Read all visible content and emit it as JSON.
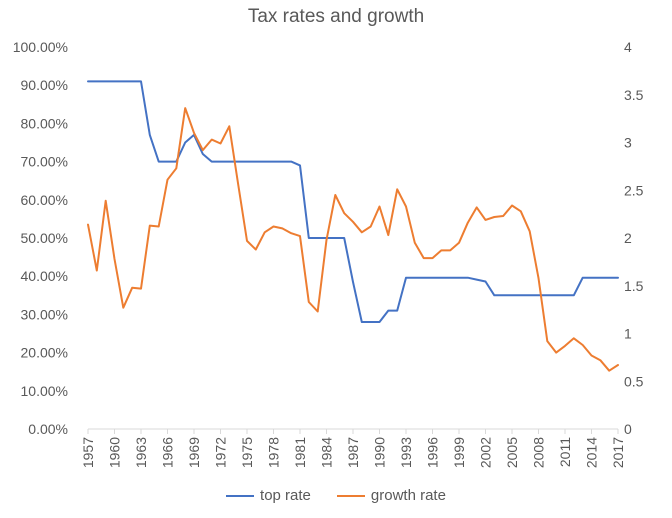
{
  "chart_data": {
    "type": "line",
    "title": "Tax rates and growth",
    "xlabel": "",
    "ylabel_left": "",
    "ylabel_right": "",
    "x": [
      1957,
      1958,
      1959,
      1960,
      1961,
      1962,
      1963,
      1964,
      1965,
      1966,
      1967,
      1968,
      1969,
      1970,
      1971,
      1972,
      1973,
      1974,
      1975,
      1976,
      1977,
      1978,
      1979,
      1980,
      1981,
      1982,
      1983,
      1984,
      1985,
      1986,
      1987,
      1988,
      1989,
      1990,
      1991,
      1992,
      1993,
      1994,
      1995,
      1996,
      1997,
      1998,
      1999,
      2000,
      2001,
      2002,
      2003,
      2004,
      2005,
      2006,
      2007,
      2008,
      2009,
      2010,
      2011,
      2012,
      2013,
      2014,
      2015,
      2016,
      2017
    ],
    "x_tick_labels": [
      "1957",
      "1960",
      "1963",
      "1966",
      "1969",
      "1972",
      "1975",
      "1978",
      "1981",
      "1984",
      "1987",
      "1990",
      "1993",
      "1996",
      "1999",
      "2002",
      "2005",
      "2008",
      "2011",
      "2014",
      "2017"
    ],
    "y_left_ticks": [
      "0.00%",
      "10.00%",
      "20.00%",
      "30.00%",
      "40.00%",
      "50.00%",
      "60.00%",
      "70.00%",
      "80.00%",
      "90.00%",
      "100.00%"
    ],
    "y_right_ticks": [
      "0",
      "0.5",
      "1",
      "1.5",
      "2",
      "2.5",
      "3",
      "3.5",
      "4"
    ],
    "ylim_left": [
      0,
      1
    ],
    "ylim_right": [
      0,
      4
    ],
    "grid": false,
    "legend_position": "bottom",
    "series": [
      {
        "name": "top rate",
        "axis": "left",
        "color": "#4472C4",
        "values": [
          0.91,
          0.91,
          0.91,
          0.91,
          0.91,
          0.91,
          0.91,
          0.77,
          0.7,
          0.7,
          0.7,
          0.75,
          0.77,
          0.72,
          0.7,
          0.7,
          0.7,
          0.7,
          0.7,
          0.7,
          0.7,
          0.7,
          0.7,
          0.7,
          0.69,
          0.5,
          0.5,
          0.5,
          0.5,
          0.5,
          0.385,
          0.28,
          0.28,
          0.28,
          0.31,
          0.31,
          0.396,
          0.396,
          0.396,
          0.396,
          0.396,
          0.396,
          0.396,
          0.396,
          0.391,
          0.386,
          0.35,
          0.35,
          0.35,
          0.35,
          0.35,
          0.35,
          0.35,
          0.35,
          0.35,
          0.35,
          0.396,
          0.396,
          0.396,
          0.396,
          0.396
        ]
      },
      {
        "name": "growth rate",
        "axis": "right",
        "color": "#ED7D31",
        "values": [
          2.14,
          1.66,
          2.39,
          1.78,
          1.27,
          1.48,
          1.47,
          2.13,
          2.12,
          2.61,
          2.73,
          3.36,
          3.1,
          2.92,
          3.03,
          2.99,
          3.17,
          2.56,
          1.97,
          1.88,
          2.06,
          2.12,
          2.1,
          2.05,
          2.02,
          1.33,
          1.23,
          1.98,
          2.45,
          2.26,
          2.17,
          2.06,
          2.12,
          2.33,
          2.03,
          2.51,
          2.33,
          1.95,
          1.79,
          1.79,
          1.87,
          1.87,
          1.95,
          2.16,
          2.32,
          2.19,
          2.22,
          2.23,
          2.34,
          2.28,
          2.07,
          1.58,
          0.92,
          0.8,
          0.87,
          0.95,
          0.88,
          0.77,
          0.72,
          0.61,
          0.67
        ]
      }
    ]
  }
}
